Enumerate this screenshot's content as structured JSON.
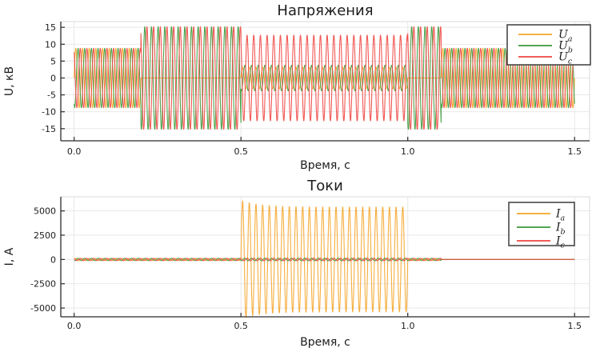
{
  "figure": {
    "background": "#FFFFFF",
    "text_color": "#1C1C1C",
    "grid_color": "#E5E5E5",
    "frame_color": "#D9D9D9",
    "spine_color": "#2B2B2B",
    "legend_border_color": "#3C3C3C",
    "legend_background": "#FFFFFF"
  },
  "chart_data": [
    {
      "type": "line",
      "title": "Напряжения",
      "xlabel": "Время, с",
      "ylabel": "U, кВ",
      "x_range": [
        -0.04,
        1.545
      ],
      "y_range": [
        -18.6,
        16.7
      ],
      "xticks": [
        0.0,
        0.5,
        1.0,
        1.5
      ],
      "xtick_labels": [
        "0.0",
        "0.5",
        "1.0",
        "1.5"
      ],
      "yticks": [
        15,
        10,
        5,
        0,
        -5,
        -10,
        -15
      ],
      "ytick_labels": [
        "15",
        "10",
        "5",
        "0",
        "-5",
        "-10",
        "-15"
      ],
      "grid": true,
      "legend_position": "top-right",
      "waveform": {
        "kind": "sine",
        "frequency_hz": 50
      },
      "series": [
        {
          "name": "U_a",
          "legend": {
            "main": "U",
            "sub": "a"
          },
          "color": "#F5A72E",
          "phase_deg": 0,
          "segments": [
            {
              "t_start": 0.0,
              "t_end": 0.2,
              "amplitude": 8.8
            },
            {
              "t_start": 0.2,
              "t_end": 0.5,
              "amplitude": 0
            },
            {
              "t_start": 0.5,
              "t_end": 1.0,
              "amplitude": 3.2
            },
            {
              "t_start": 1.0,
              "t_end": 1.1,
              "amplitude": 0
            },
            {
              "t_start": 1.1,
              "t_end": 1.5,
              "amplitude": 8.8
            }
          ]
        },
        {
          "name": "U_b",
          "legend": {
            "main": "U",
            "sub": "b"
          },
          "color": "#3F9C3F",
          "phase_deg": -120,
          "segments": [
            {
              "t_start": 0.0,
              "t_end": 0.2,
              "amplitude": 8.8
            },
            {
              "t_start": 0.2,
              "t_end": 0.5,
              "amplitude": 15.2
            },
            {
              "t_start": 0.5,
              "t_end": 1.0,
              "amplitude": 3.8
            },
            {
              "t_start": 1.0,
              "t_end": 1.1,
              "amplitude": 15.2
            },
            {
              "t_start": 1.1,
              "t_end": 1.5,
              "amplitude": 8.8
            }
          ]
        },
        {
          "name": "U_c",
          "legend": {
            "main": "U",
            "sub": "c"
          },
          "color": "#F04A45",
          "phase_deg": 120,
          "segments": [
            {
              "t_start": 0.0,
              "t_end": 0.2,
              "amplitude": 8.8
            },
            {
              "t_start": 0.2,
              "t_end": 0.5,
              "amplitude": 15.2
            },
            {
              "t_start": 0.5,
              "t_end": 1.0,
              "amplitude": 12.7
            },
            {
              "t_start": 1.0,
              "t_end": 1.1,
              "amplitude": 15.2
            },
            {
              "t_start": 1.1,
              "t_end": 1.5,
              "amplitude": 8.8
            }
          ]
        }
      ]
    },
    {
      "type": "line",
      "title": "Токи",
      "xlabel": "Время, с",
      "ylabel": "I, А",
      "x_range": [
        -0.04,
        1.545
      ],
      "y_range": [
        -5900,
        6450
      ],
      "xticks": [
        0.0,
        0.5,
        1.0,
        1.5
      ],
      "xtick_labels": [
        "0.0",
        "0.5",
        "1.0",
        "1.5"
      ],
      "yticks": [
        5000,
        2500,
        0,
        -2500,
        -5000
      ],
      "ytick_labels": [
        "5000",
        "2500",
        "0",
        "-2500",
        "-5000"
      ],
      "grid": true,
      "legend_position": "top-right",
      "waveform": {
        "kind": "sine",
        "frequency_hz": 50
      },
      "series": [
        {
          "name": "I_a",
          "legend": {
            "main": "I",
            "sub": "a"
          },
          "color": "#F5A72E",
          "phase_deg": 0,
          "segments": [
            {
              "t_start": 0.0,
              "t_end": 0.5,
              "amplitude": 120
            },
            {
              "t_start": 0.5,
              "t_end": 1.0,
              "amplitude": 5400,
              "amplitude_start": 6100,
              "decay": 18
            },
            {
              "t_start": 1.0,
              "t_end": 1.1,
              "amplitude": 120
            },
            {
              "t_start": 1.1,
              "t_end": 1.5,
              "amplitude": 0
            }
          ]
        },
        {
          "name": "I_b",
          "legend": {
            "main": "I",
            "sub": "b"
          },
          "color": "#3F9C3F",
          "phase_deg": -120,
          "segments": [
            {
              "t_start": 0.0,
              "t_end": 0.5,
              "amplitude": 120
            },
            {
              "t_start": 0.5,
              "t_end": 1.0,
              "amplitude": 130
            },
            {
              "t_start": 1.0,
              "t_end": 1.1,
              "amplitude": 120
            },
            {
              "t_start": 1.1,
              "t_end": 1.5,
              "amplitude": 0
            }
          ]
        },
        {
          "name": "I_c",
          "legend": {
            "main": "I",
            "sub": "c"
          },
          "color": "#F04A45",
          "phase_deg": 120,
          "segments": [
            {
              "t_start": 0.0,
              "t_end": 0.5,
              "amplitude": 120
            },
            {
              "t_start": 0.5,
              "t_end": 1.0,
              "amplitude": 130
            },
            {
              "t_start": 1.0,
              "t_end": 1.1,
              "amplitude": 120
            },
            {
              "t_start": 1.1,
              "t_end": 1.5,
              "amplitude": 0
            }
          ]
        }
      ]
    }
  ]
}
